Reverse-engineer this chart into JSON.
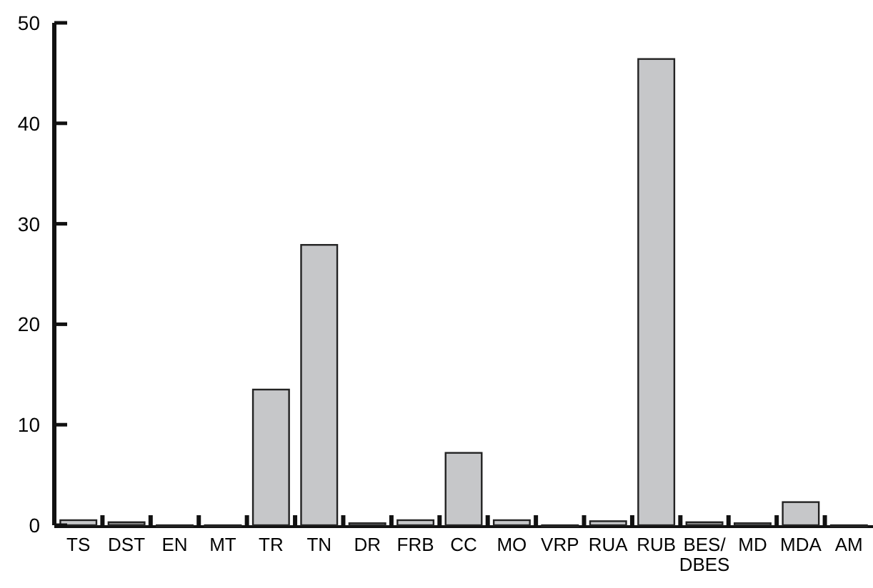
{
  "chart_data": {
    "type": "bar",
    "categories": [
      "TS",
      "DST",
      "EN",
      "MT",
      "TR",
      "TN",
      "DR",
      "FRB",
      "CC",
      "MO",
      "VRP",
      "RUA",
      "RUB",
      "BES/ DBES",
      "MD",
      "MDA",
      "AM"
    ],
    "values": [
      0.5,
      0.3,
      0,
      0,
      13.5,
      27.9,
      0.2,
      0.5,
      7.2,
      0.5,
      0,
      0.4,
      46.4,
      0.3,
      0.2,
      2.3,
      0
    ],
    "colors": [
      "#c6c7c9",
      "#8a8a8a",
      "#c6c7c9",
      "#c6c7c9",
      "#c6c7c9",
      "#c6c7c9",
      "#c6c7c9",
      "#c6c7c9",
      "#c6c7c9",
      "#c6c7c9",
      "#c6c7c9",
      "#c6c7c9",
      "#c6c7c9",
      "#8a8a8a",
      "#c6c7c9",
      "#c6c7c9",
      "#c6c7c9"
    ],
    "ylim": [
      0,
      50
    ],
    "yticks": [
      0,
      10,
      20,
      30,
      40,
      50
    ],
    "grid": false
  }
}
